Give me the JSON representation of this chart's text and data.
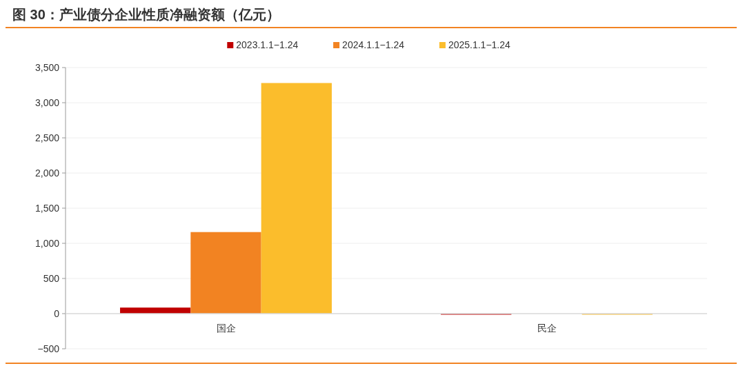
{
  "chart_data": {
    "type": "bar",
    "title": "图 30：产业债分企业性质净融资额（亿元）",
    "categories": [
      "国企",
      "民企"
    ],
    "series": [
      {
        "name": "2023.1.1−1.24",
        "color": "#c00000",
        "values": [
          86,
          -15
        ]
      },
      {
        "name": "2024.1.1−1.24",
        "color": "#f28322",
        "values": [
          1160,
          0
        ]
      },
      {
        "name": "2025.1.1−1.24",
        "color": "#fbbd2c",
        "values": [
          3280,
          -15
        ]
      }
    ],
    "ylim": [
      -500,
      3500
    ],
    "yticks": [
      {
        "value": -500,
        "label": "−500"
      },
      {
        "value": 0,
        "label": "0"
      },
      {
        "value": 500,
        "label": "500"
      },
      {
        "value": 1000,
        "label": "1,000"
      },
      {
        "value": 1500,
        "label": "1,500"
      },
      {
        "value": 2000,
        "label": "2,000"
      },
      {
        "value": 2500,
        "label": "2,500"
      },
      {
        "value": 3000,
        "label": "3,000"
      },
      {
        "value": 3500,
        "label": "3,500"
      }
    ],
    "grid": "y",
    "legend": "top"
  }
}
